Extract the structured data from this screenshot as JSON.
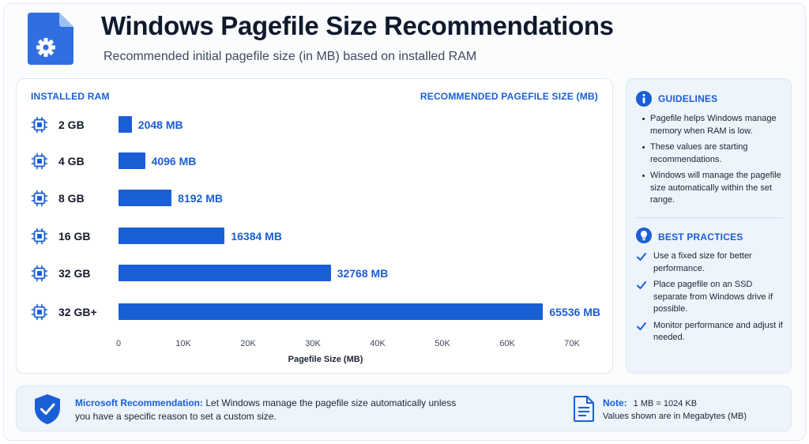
{
  "header": {
    "title": "Windows Pagefile Size Recommendations",
    "subtitle": "Recommended initial pagefile size (in MB) based on installed RAM",
    "icon": "document-gear-icon"
  },
  "chart_data": {
    "type": "bar",
    "orientation": "horizontal",
    "column_header_left": "INSTALLED RAM",
    "column_header_right": "RECOMMENDED PAGEFILE SIZE (MB)",
    "categories": [
      "2 GB",
      "4 GB",
      "8 GB",
      "16 GB",
      "32 GB",
      "32 GB+"
    ],
    "values": [
      2048,
      4096,
      8192,
      16384,
      32768,
      65536
    ],
    "value_labels": [
      "2048 MB",
      "4096 MB",
      "8192 MB",
      "16384 MB",
      "32768 MB",
      "65536 MB"
    ],
    "xlabel": "Pagefile Size (MB)",
    "xlim": [
      0,
      70000
    ],
    "ticks": [
      0,
      10000,
      20000,
      30000,
      40000,
      50000,
      60000,
      70000
    ],
    "tick_labels": [
      "0",
      "10K",
      "20K",
      "30K",
      "40K",
      "50K",
      "60K",
      "70K"
    ],
    "grid": false,
    "bar_color": "#1a5fd6",
    "category_icon": "memory-chip-icon"
  },
  "guidelines": {
    "title": "GUIDELINES",
    "icon": "info-icon",
    "items": [
      "Pagefile helps Windows manage memory when RAM is low.",
      "These values are starting recommendations.",
      "Windows will manage the pagefile size automatically within the set range."
    ]
  },
  "best_practices": {
    "title": "BEST PRACTICES",
    "icon": "lightbulb-icon",
    "items": [
      "Use a fixed size for better performance.",
      "Place pagefile on an SSD separate from Windows drive if possible.",
      "Monitor performance and adjust if needed."
    ]
  },
  "footer": {
    "recommendation_title": "Microsoft Recommendation:",
    "recommendation_text": " Let Windows manage the pagefile size automatically unless you have a specific reason to set a custom size.",
    "note_title": "Note:",
    "note_text": "1 MB = 1024 KB",
    "note_sub": "Values shown are in Megabytes (MB)",
    "shield_icon": "shield-check-icon",
    "note_icon": "document-icon"
  },
  "colors": {
    "accent": "#1a5fd6",
    "text": "#1b2433",
    "panel": "#eef4fc"
  }
}
